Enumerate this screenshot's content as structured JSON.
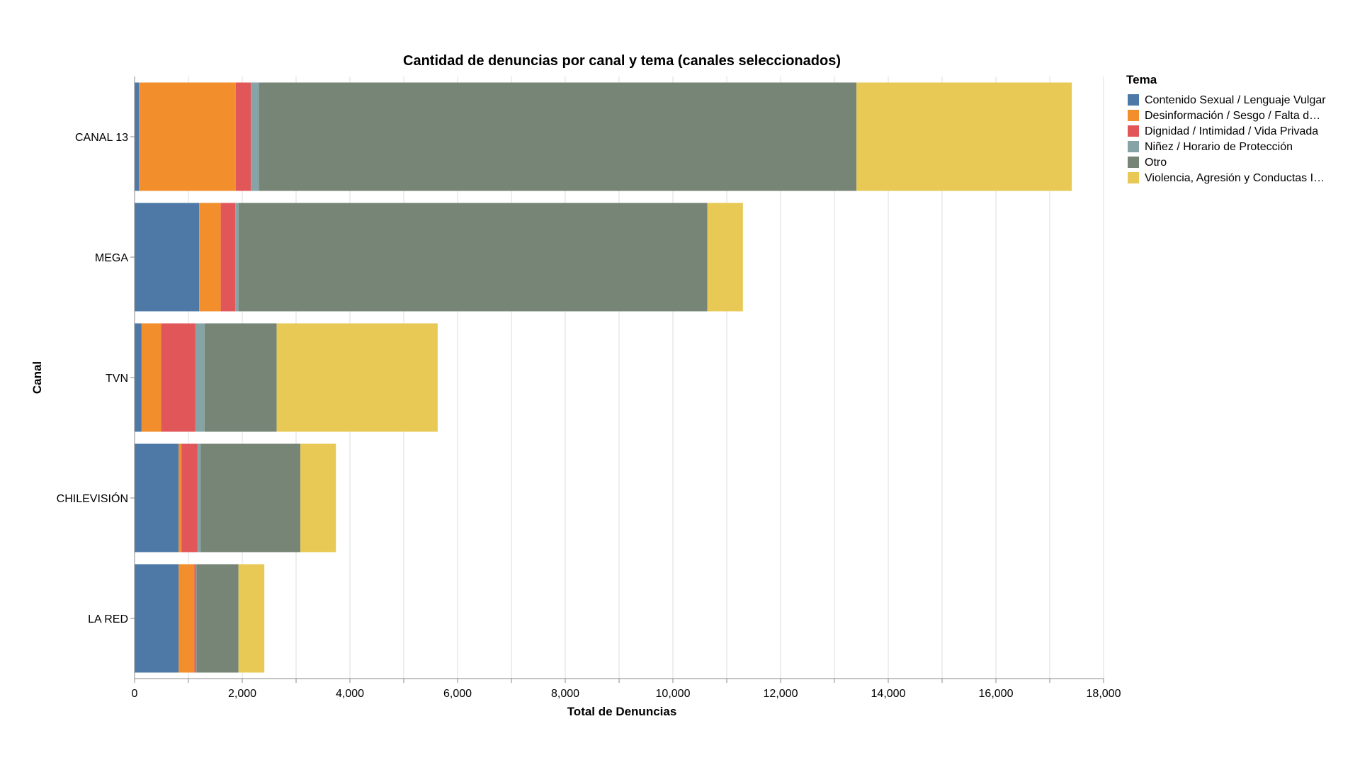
{
  "chart_data": {
    "type": "bar",
    "orientation": "horizontal",
    "stacked": true,
    "title": "Cantidad de denuncias por canal y tema (canales seleccionados)",
    "xlabel": "Total de Denuncias",
    "ylabel": "Canal",
    "xlim": [
      0,
      18000
    ],
    "x_ticks": [
      "0",
      "2,000",
      "4,000",
      "6,000",
      "8,000",
      "10,000",
      "12,000",
      "14,000",
      "16,000",
      "18,000"
    ],
    "grid": true,
    "legend_title": "Tema",
    "legend_position": "right",
    "categories": [
      "CANAL 13",
      "MEGA",
      "TVN",
      "CHILEVISIÓN",
      "LA RED"
    ],
    "series": [
      {
        "name": "Contenido Sexual / Lenguaje Vulgar",
        "color": "#4e79a7",
        "values": [
          80,
          1200,
          130,
          820,
          820
        ]
      },
      {
        "name": "Desinformación / Sesgo / Falta d…",
        "color": "#f28e2b",
        "values": [
          1800,
          400,
          360,
          50,
          290
        ]
      },
      {
        "name": "Dignidad / Intimidad / Vida Privada",
        "color": "#e15759",
        "values": [
          280,
          270,
          640,
          300,
          30
        ]
      },
      {
        "name": "Niñez / Horario de Protección",
        "color": "#86a4a6",
        "values": [
          150,
          60,
          170,
          60,
          10
        ]
      },
      {
        "name": "Otro",
        "color": "#768575",
        "values": [
          11100,
          8710,
          1340,
          1850,
          780
        ]
      },
      {
        "name": "Violencia, Agresión y Conductas I…",
        "color": "#e8c955",
        "values": [
          4000,
          660,
          2990,
          660,
          480
        ]
      }
    ]
  }
}
